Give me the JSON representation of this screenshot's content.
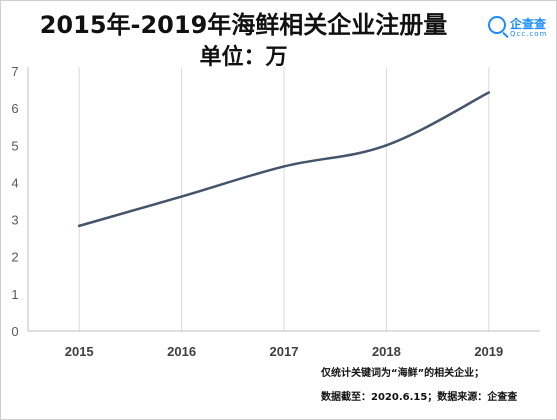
{
  "header": {
    "title": "2015年-2019年海鲜相关企业注册量",
    "subtitle": "单位：万",
    "brand_name": "企查查",
    "brand_domain": "Qcc.com"
  },
  "footnotes": {
    "line1": "仅统计关键词为“海鲜”的相关企业；",
    "line2": "数据截至：2020.6.15；数据来源：企查查"
  },
  "chart_data": {
    "type": "line",
    "title": "2015年-2019年海鲜相关企业注册量",
    "subtitle": "单位：万",
    "categories": [
      "2015",
      "2016",
      "2017",
      "2018",
      "2019"
    ],
    "series": [
      {
        "values": [
          2.83,
          3.62,
          4.43,
          5.0,
          6.42
        ]
      }
    ],
    "ylim": [
      0,
      7
    ],
    "yticks": [
      "0",
      "1",
      "2",
      "3",
      "4",
      "5",
      "6",
      "7"
    ],
    "xlabel": "",
    "ylabel": "",
    "grid": "vertical",
    "line_color": "#44546a",
    "grid_color": "#d9d9d9",
    "axis_color": "#bfbfbf",
    "smooth": true
  }
}
